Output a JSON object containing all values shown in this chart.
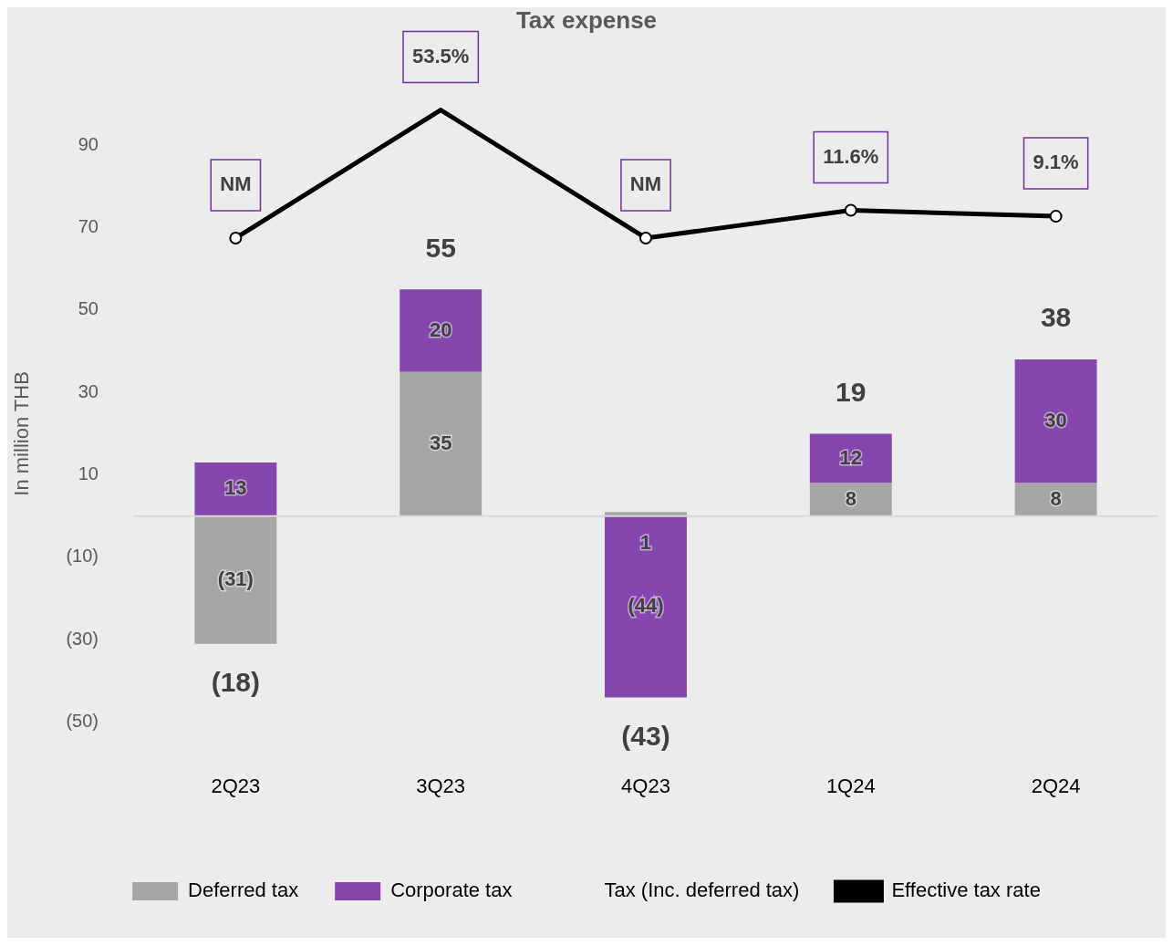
{
  "chart_data": {
    "type": "bar",
    "stacked": true,
    "title": "Tax expense",
    "ylabel": "In million THB",
    "categories": [
      "2Q23",
      "3Q23",
      "4Q23",
      "1Q24",
      "2Q24"
    ],
    "series": [
      {
        "name": "Deferred tax",
        "color": "#a6a6a6",
        "values": [
          -31,
          35,
          1,
          8,
          8
        ],
        "value_labels": [
          "(31)",
          "35",
          "1",
          "8",
          "8"
        ]
      },
      {
        "name": "Corporate tax",
        "color": "#8547ad",
        "values": [
          13,
          20,
          -44,
          12,
          30
        ],
        "value_labels": [
          "13",
          "20",
          "(44)",
          "12",
          "30"
        ]
      },
      {
        "name": "Effective tax rate",
        "type": "line",
        "axis": "y2",
        "color": "#000000",
        "marker": "circle",
        "values": [
          0,
          53.5,
          0,
          11.6,
          9.1
        ],
        "value_labels": [
          "NM",
          "53.5%",
          "NM",
          "11.6%",
          "9.1%"
        ]
      }
    ],
    "totals": [
      "(18)",
      "55",
      "(43)",
      "19",
      "38"
    ],
    "annotations": [
      "Tax (Inc. deferred tax)"
    ],
    "ylim": [
      -50,
      90
    ],
    "yticks": [
      {
        "value": -50,
        "label": "(50)"
      },
      {
        "value": -30,
        "label": "(30)"
      },
      {
        "value": -10,
        "label": "(10)"
      },
      10,
      30,
      50,
      70,
      90
    ],
    "ref_lines": [
      {
        "axis": "y",
        "value": 0,
        "color": "#d9d9d9"
      }
    ],
    "grid": false,
    "legend": "bottom"
  }
}
